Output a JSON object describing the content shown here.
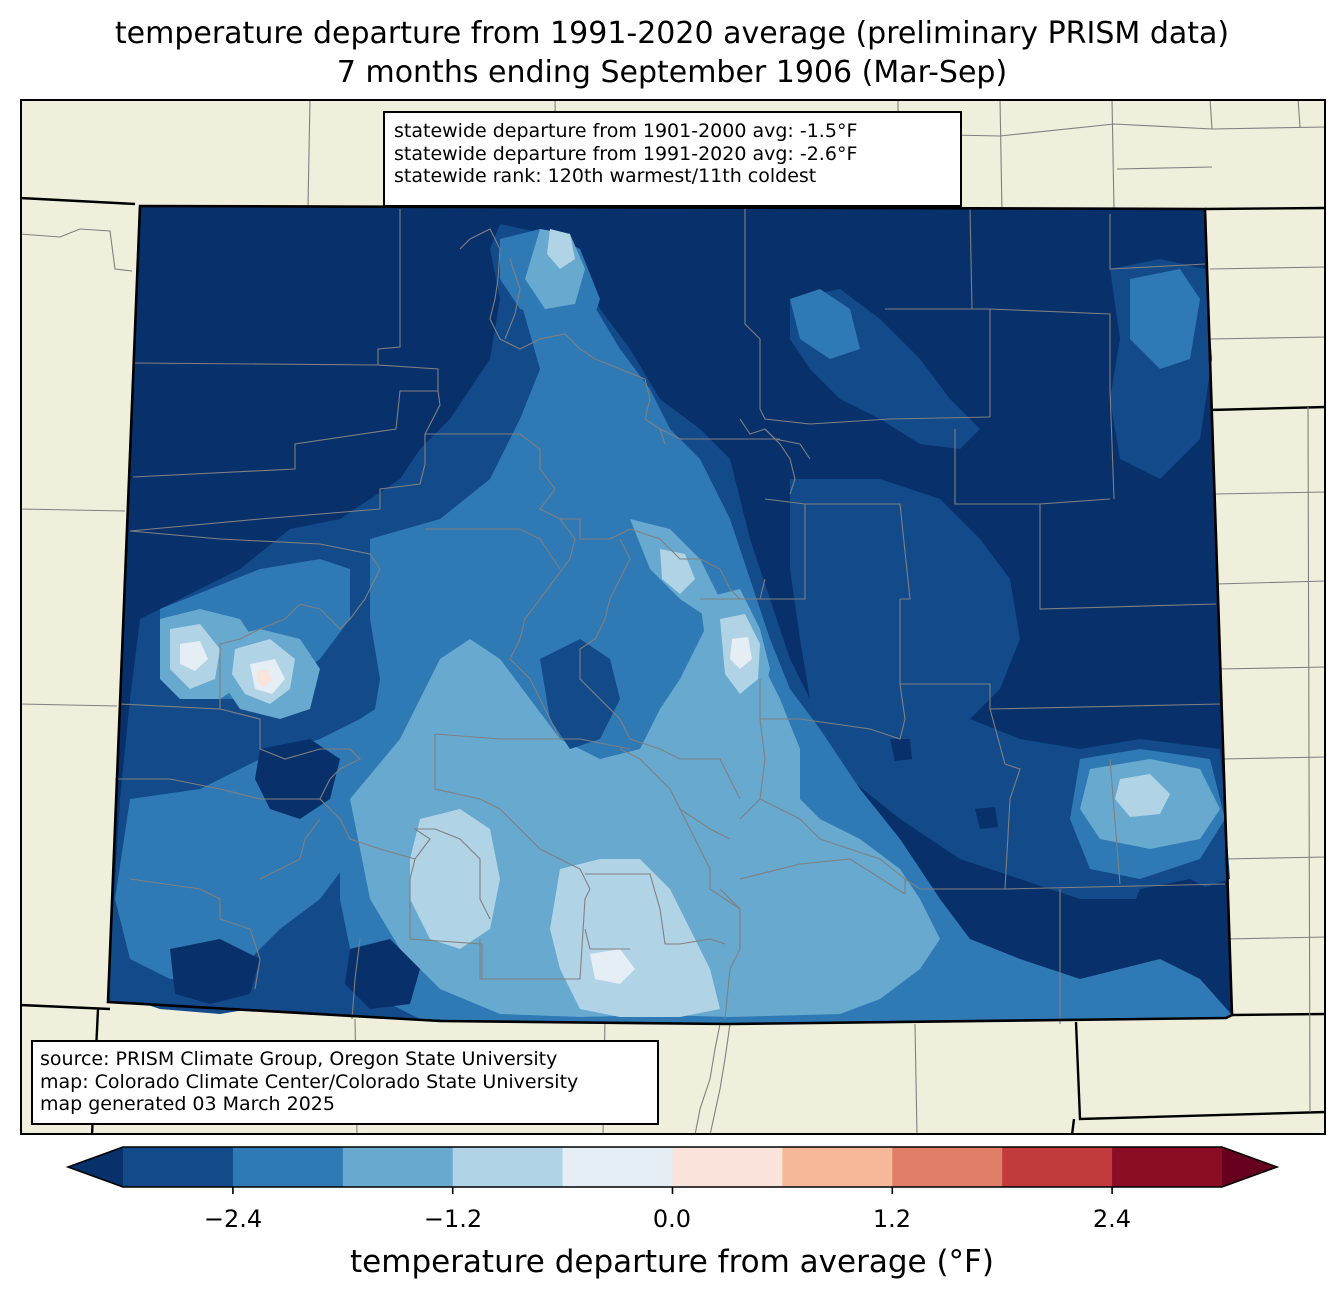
{
  "title": {
    "line1": "temperature departure from 1991-2020 average (preliminary PRISM data)",
    "line2": "7 months ending September 1906 (Mar-Sep)"
  },
  "stats": {
    "line1": "statewide departure from 1901-2000 avg: -1.5°F",
    "line2": "statewide departure from 1991-2020 avg: -2.6°F",
    "line3": "statewide rank: 120th warmest/11th coldest"
  },
  "source": {
    "line1": "source: PRISM Climate Group, Oregon State University",
    "line2": "map: Colorado Climate Center/Colorado State University",
    "line3": "map generated 03 March 2025"
  },
  "colorbar": {
    "label": "temperature departure from average (°F)",
    "ticks": [
      "−2.4",
      "−1.2",
      "0.0",
      "1.2",
      "2.4"
    ],
    "bins": [
      -3.0,
      -2.4,
      -1.8,
      -1.2,
      -0.6,
      0.0,
      0.6,
      1.2,
      1.8,
      2.4,
      3.0
    ],
    "colors": [
      "#08306b",
      "#124a8a",
      "#2f79b5",
      "#67a9cf",
      "#b1d3e6",
      "#e5eef4",
      "#f9e3da",
      "#f7b799",
      "#e07e67",
      "#c13b3c",
      "#8a0c25",
      "#67001f"
    ]
  },
  "map_colors": {
    "background": "#efefdc",
    "state_border": "#000000",
    "county_lines": "#808080"
  }
}
